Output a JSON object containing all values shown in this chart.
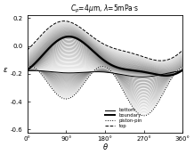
{
  "xlabel": "θ",
  "ylabel": "ε",
  "xlim": [
    0,
    360
  ],
  "ylim": [
    -0.62,
    0.22
  ],
  "xticks": [
    0,
    90,
    180,
    270,
    360
  ],
  "xtick_labels": [
    "0°",
    "90°",
    "180°",
    "270°",
    "360°"
  ],
  "yticks": [
    0.2,
    0.0,
    -0.2,
    -0.4,
    -0.6
  ],
  "n_fan": 30,
  "bg_color": "white"
}
